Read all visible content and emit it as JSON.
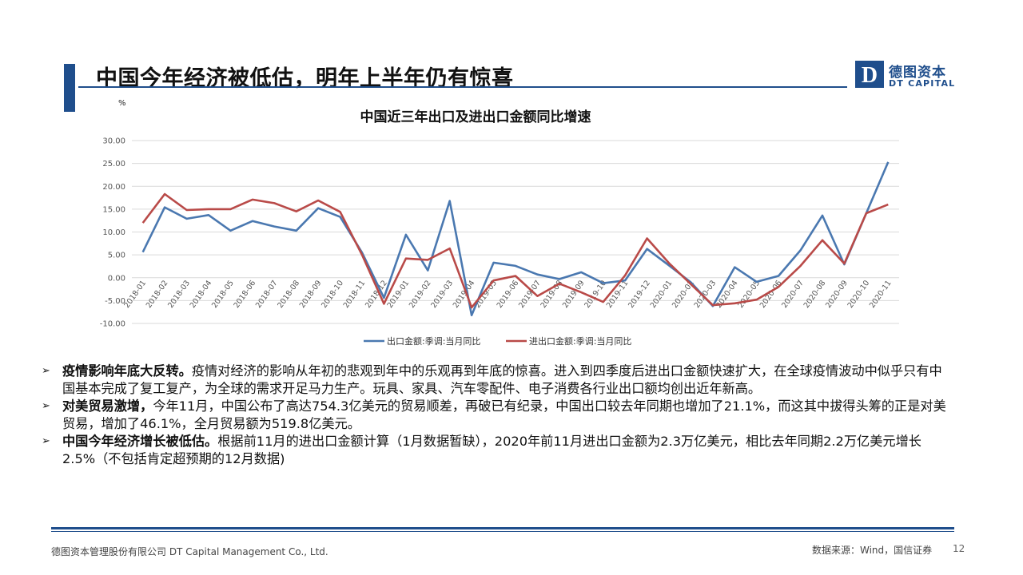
{
  "header": {
    "title": "中国今年经济被低估，明年上半年仍有惊喜"
  },
  "logo": {
    "cn": "德图资本",
    "en": "DT CAPITAL",
    "mark_letter": "D"
  },
  "chart_data": {
    "type": "line",
    "title": "中国近三年出口及进出口金额同比增速",
    "unit_label": "%",
    "ylim": [
      -10,
      30
    ],
    "yticks": [
      "30.00",
      "25.00",
      "20.00",
      "15.00",
      "10.00",
      "5.00",
      "0.00",
      "-5.00",
      "-10.00"
    ],
    "ytick_values": [
      30,
      25,
      20,
      15,
      10,
      5,
      0,
      -5,
      -10
    ],
    "grid": true,
    "legend_position": "bottom",
    "categories": [
      "2018-01",
      "2018-02",
      "2018-03",
      "2018-04",
      "2018-05",
      "2018-06",
      "2018-07",
      "2018-08",
      "2018-09",
      "2018-10",
      "2018-11",
      "2018-12",
      "2019-01",
      "2019-02",
      "2019-03",
      "2019-04",
      "2019-05",
      "2019-06",
      "2019-07",
      "2019-08",
      "2019-09",
      "2019-10",
      "2019-11",
      "2019-12",
      "2020-01",
      "2020-02",
      "2020-03",
      "2020-04",
      "2020-05",
      "2020-06",
      "2020-07",
      "2020-08",
      "2020-09",
      "2020-10",
      "2020-11"
    ],
    "series": [
      {
        "name": "出口金额:季调:当月同比",
        "color": "#4a78b0",
        "values": [
          5.6,
          15.4,
          12.9,
          13.7,
          10.3,
          12.4,
          11.2,
          10.3,
          15.2,
          13.3,
          5.5,
          -4.4,
          9.4,
          1.6,
          16.8,
          -8.2,
          3.3,
          2.6,
          0.7,
          -0.3,
          1.2,
          -1.2,
          -0.6,
          6.3,
          2.7,
          -1.0,
          -6.2,
          2.3,
          -0.9,
          0.4,
          6.0,
          13.6,
          2.9,
          14.1,
          25.3
        ]
      },
      {
        "name": "进出口金额:季调:当月同比",
        "color": "#b94a48",
        "values": [
          12.0,
          18.3,
          14.8,
          15.0,
          15.0,
          17.1,
          16.3,
          14.5,
          16.9,
          14.4,
          5.0,
          -5.7,
          4.2,
          3.9,
          6.4,
          -6.5,
          -0.6,
          0.4,
          -4.0,
          -1.3,
          -3.2,
          -5.3,
          0.5,
          8.6,
          3.2,
          -1.4,
          -6.0,
          -5.6,
          -4.8,
          -2.0,
          2.6,
          8.2,
          3.1,
          14.1,
          16.0
        ]
      }
    ]
  },
  "bullets": [
    {
      "bold": "疫情影响年底大反转。",
      "text": "疫情对经济的影响从年初的悲观到年中的乐观再到年底的惊喜。进入到四季度后进出口金额快速扩大，在全球疫情波动中似乎只有中国基本完成了复工复产，为全球的需求开足马力生产。玩具、家具、汽车零配件、电子消费各行业出口额均创出近年新高。"
    },
    {
      "bold": "对美贸易激增，",
      "text": "今年11月，中国公布了高达754.3亿美元的贸易顺差，再破已有纪录，中国出口较去年同期也增加了21.1%，而这其中拔得头筹的正是对美贸易，增加了46.1%，全月贸易额为519.8亿美元。"
    },
    {
      "bold": "中国今年经济增长被低估。",
      "text": "根据前11月的进出口金额计算（1月数据暂缺），2020年前11月进出口金额为2.3万亿美元，相比去年同期2.2万亿美元增长2.5%（不包括肯定超预期的12月数据)"
    }
  ],
  "bullet_marker": "➢",
  "footer": {
    "company": "德图资本管理股份有限公司  DT Capital  Management  Co., Ltd.",
    "source": "数据来源：Wind，国信证券",
    "page": "12"
  },
  "colors": {
    "accent": "#1f4e8c",
    "grid": "#d9d9d9",
    "axis_text": "#555555"
  }
}
